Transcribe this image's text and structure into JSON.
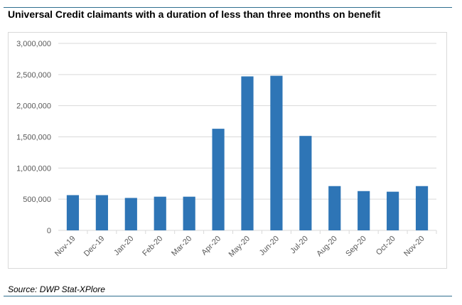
{
  "title": "Universal Credit claimants with a duration of less than three months on benefit",
  "source": "Source: DWP Stat-XPlore",
  "colors": {
    "bar": "#2e75b6",
    "grid": "#d9d9d9",
    "rule": "#2f6f8f"
  },
  "chart_data": {
    "type": "bar",
    "categories": [
      "Nov-19",
      "Dec-19",
      "Jan-20",
      "Feb-20",
      "Mar-20",
      "Apr-20",
      "May-20",
      "Jun-20",
      "Jul-20",
      "Aug-20",
      "Sep-20",
      "Oct-20",
      "Nov-20"
    ],
    "values": [
      565000,
      565000,
      520000,
      540000,
      540000,
      1630000,
      2470000,
      2480000,
      1515000,
      710000,
      630000,
      620000,
      710000
    ],
    "y_ticks": [
      "0",
      "500,000",
      "1,000,000",
      "1,500,000",
      "2,000,000",
      "2,500,000",
      "3,000,000"
    ],
    "ylim": [
      0,
      3000000
    ],
    "grid": true,
    "legend": "none"
  }
}
